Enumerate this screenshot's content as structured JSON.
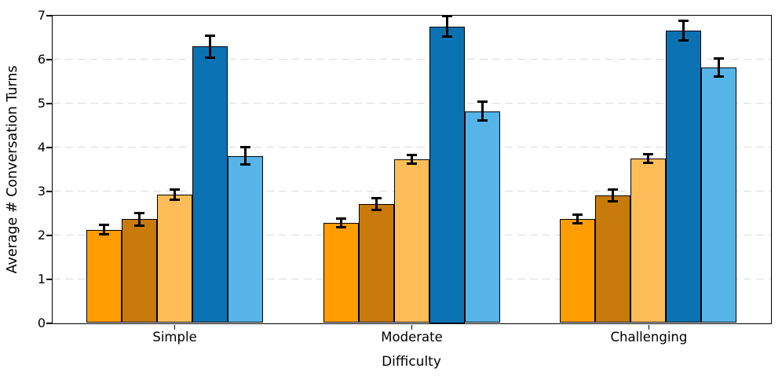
{
  "chart_data": {
    "type": "bar",
    "xlabel": "Difficulty",
    "ylabel": "Average # Conversation Turns",
    "categories": [
      "Simple",
      "Moderate",
      "Challenging"
    ],
    "series": [
      {
        "name": "orange",
        "color": "#FF9D02",
        "values": [
          2.12,
          2.28,
          2.36
        ],
        "errors": [
          0.11,
          0.1,
          0.1
        ]
      },
      {
        "name": "dark-orange",
        "color": "#C87B0B",
        "values": [
          2.36,
          2.71,
          2.9
        ],
        "errors": [
          0.14,
          0.13,
          0.13
        ]
      },
      {
        "name": "light-orange",
        "color": "#FFBD59",
        "values": [
          2.92,
          3.72,
          3.74
        ],
        "errors": [
          0.11,
          0.1,
          0.1
        ]
      },
      {
        "name": "dark-blue",
        "color": "#0A72B2",
        "values": [
          6.29,
          6.75,
          6.65
        ],
        "errors": [
          0.25,
          0.24,
          0.23
        ]
      },
      {
        "name": "light-blue",
        "color": "#56B4E9",
        "values": [
          3.8,
          4.82,
          5.81
        ],
        "errors": [
          0.2,
          0.21,
          0.2
        ]
      }
    ],
    "ylim": [
      0,
      7
    ],
    "yticks": [
      0,
      1,
      2,
      3,
      4,
      5,
      6,
      7
    ],
    "grid": "horizontal-dashed",
    "grid_color": "#DCDCDC",
    "legend": "none",
    "bar_edge_color": "#000000",
    "error_bar_color": "#000000"
  }
}
